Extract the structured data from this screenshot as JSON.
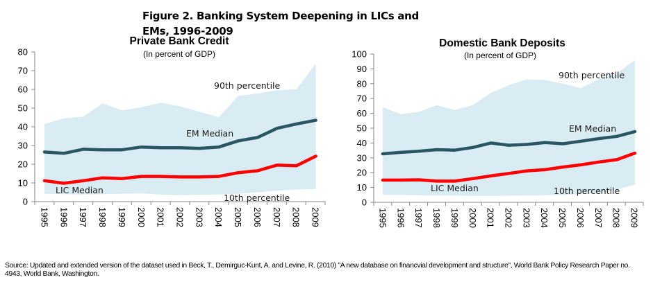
{
  "figure_title": "Figure 2. Banking System Deepening in LICs and EMs, 1996-2009",
  "source_note": "Source: Updated and extended version of the dataset used in Beck, T., Demirguc-Kunt, A. and Levine, R. (2010) \"A new database on financvial development and structure\", World Bank Policy Research Paper no. 4943, World Bank, Washington.",
  "colors": {
    "band": "#daecf3",
    "em_median": "#2a5664",
    "lic_median": "#ff0000",
    "axis": "#868686"
  },
  "chart_data": [
    {
      "type": "line",
      "title": "Private Bank Credit",
      "subtitle": "(In percent of GDP)",
      "xlabel": "",
      "ylabel": "",
      "x": [
        "1995",
        "1996",
        "1997",
        "1998",
        "1999",
        "2000",
        "2001",
        "2002",
        "2003",
        "2004",
        "2005",
        "2006",
        "2007",
        "2008",
        "2009"
      ],
      "ylim": [
        0,
        80
      ],
      "yticks": [
        0,
        10,
        20,
        30,
        40,
        50,
        60,
        70,
        80
      ],
      "grid": false,
      "band": {
        "name": "10th-90th percentile range",
        "upper_label": "90th percentile",
        "lower_label": "10th percentile",
        "upper": [
          41.5,
          44.5,
          45.5,
          52.5,
          48.8,
          50.5,
          52.8,
          51.0,
          48.0,
          45.2,
          56.5,
          57.8,
          59.5,
          60.0,
          73.7
        ],
        "lower": [
          4.2,
          4.0,
          3.8,
          4.0,
          4.2,
          4.3,
          3.8,
          3.5,
          3.7,
          3.8,
          4.2,
          5.0,
          5.8,
          6.5,
          6.7
        ]
      },
      "series": [
        {
          "name": "EM Median",
          "label": "EM Median",
          "values": [
            26.5,
            25.8,
            28.0,
            27.7,
            27.7,
            29.2,
            28.8,
            28.8,
            28.5,
            29.2,
            32.5,
            34.3,
            39.2,
            41.5,
            43.5
          ]
        },
        {
          "name": "LIC Median",
          "label": "LIC Median",
          "values": [
            11.2,
            9.8,
            11.2,
            12.7,
            12.3,
            13.5,
            13.5,
            13.2,
            13.2,
            13.5,
            15.5,
            16.5,
            19.5,
            19.2,
            24.3
          ]
        }
      ]
    },
    {
      "type": "line",
      "title": "Domestic Bank Deposits",
      "subtitle": "(In  percent of GDP)",
      "xlabel": "",
      "ylabel": "",
      "x": [
        "1995",
        "1996",
        "1997",
        "1998",
        "1999",
        "2000",
        "2001",
        "2002",
        "2003",
        "2004",
        "2005",
        "2006",
        "2007",
        "2008",
        "2009"
      ],
      "ylim": [
        0,
        100
      ],
      "yticks": [
        0,
        10,
        20,
        30,
        40,
        50,
        60,
        70,
        80,
        90,
        100
      ],
      "grid": false,
      "band": {
        "name": "10th-90th percentile range",
        "upper_label": "90th percentile",
        "lower_label": "10th percentile",
        "upper": [
          64.2,
          59.5,
          61.0,
          65.5,
          62.3,
          65.5,
          73.8,
          79.0,
          83.0,
          82.5,
          80.0,
          77.0,
          83.0,
          87.0,
          96.0
        ],
        "lower": [
          5.0,
          5.0,
          4.8,
          4.6,
          4.5,
          4.3,
          4.3,
          4.5,
          4.5,
          4.8,
          5.0,
          5.5,
          6.5,
          8.5,
          12.0
        ]
      },
      "series": [
        {
          "name": "EM Median",
          "label": "EM Median",
          "values": [
            32.7,
            33.7,
            34.5,
            35.5,
            35.2,
            37.0,
            40.0,
            38.5,
            39.0,
            40.3,
            39.5,
            41.2,
            43.0,
            44.5,
            47.7
          ]
        },
        {
          "name": "LIC Median",
          "label": "LIC Median",
          "values": [
            15.0,
            15.0,
            15.2,
            14.3,
            14.3,
            16.0,
            17.8,
            19.5,
            21.2,
            22.0,
            23.8,
            25.3,
            27.2,
            28.8,
            33.2
          ]
        }
      ]
    }
  ]
}
